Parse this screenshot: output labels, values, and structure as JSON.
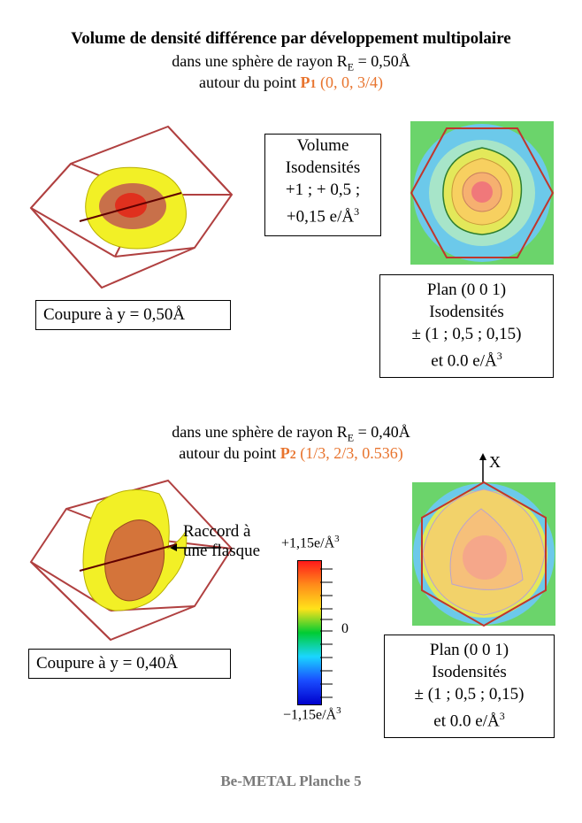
{
  "header": {
    "title": "Volume de densité différence par développement multipolaire",
    "section1": {
      "sphere_prefix": "dans une sphère de rayon R",
      "sphere_sub": "E",
      "sphere_suffix": " = 0,50Å",
      "point_prefix": "autour du point ",
      "point_name": "P",
      "point_sub": "1",
      "point_coords": " (0, 0, 3/4)"
    },
    "section2": {
      "sphere_prefix": "dans une sphère de rayon R",
      "sphere_sub": "E",
      "sphere_suffix": " = 0,40Å",
      "point_prefix": "autour du point ",
      "point_name": "P",
      "point_sub": "2",
      "point_coords": " (1/3, 2/3, 0.536)"
    }
  },
  "panel1": {
    "volume_box": {
      "line1": "Volume",
      "line2": "Isodensités",
      "line3": "+1 ; + 0,5 ;",
      "line4": "+0,15 e/Å",
      "line4_sup": "3"
    },
    "cut_label": "Coupure à y = 0,50Å",
    "plane_box": {
      "line1": "Plan (0 0 1)",
      "line2": "Isodensités",
      "line3": "± (1 ; 0,5 ; 0,15)",
      "line4": "et 0.0 e/Å",
      "line4_sup": "3"
    }
  },
  "panel2": {
    "annotation_line1": "Raccord à",
    "annotation_line2": "une flasque",
    "axis_label": "X",
    "cut_label": "Coupure à y = 0,40Å",
    "plane_box": {
      "line1": "Plan (0 0 1)",
      "line2": "Isodensités",
      "line3": "± (1 ; 0,5 ; 0,15)",
      "line4": "et 0.0 e/Å",
      "line4_sup": "3"
    }
  },
  "colorbar": {
    "max_label": "+1,15e/Å",
    "max_sup": "3",
    "zero_label": "0",
    "min_label": "−1,15e/Å",
    "min_sup": "3",
    "colors": [
      "#ff1a1a",
      "#ff8c1a",
      "#ffe21a",
      "#00cc33",
      "#1ad6ff",
      "#1a4dff",
      "#0000cc"
    ]
  },
  "footer": "Be-METAL Planche 5"
}
